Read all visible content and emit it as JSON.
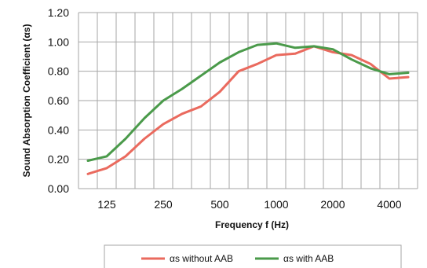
{
  "chart_data": {
    "type": "line",
    "title": "",
    "xlabel": "Frequency f (Hz)",
    "ylabel": "Sound Absorption Coefficient (αs)",
    "x": [
      100,
      125,
      160,
      200,
      250,
      315,
      400,
      500,
      630,
      800,
      1000,
      1250,
      1600,
      2000,
      2500,
      3150,
      4000,
      5000
    ],
    "x_tick_labels": [
      "125",
      "250",
      "500",
      "1000",
      "2000",
      "4000"
    ],
    "x_tick_values": [
      125,
      250,
      500,
      1000,
      2000,
      4000
    ],
    "y_tick_labels": [
      "0.00",
      "0.20",
      "0.40",
      "0.60",
      "0.80",
      "1.00",
      "1.20"
    ],
    "ylim": [
      0,
      1.2
    ],
    "y_step": 0.2,
    "x_scale": "log (one-third octave bands)",
    "grid": true,
    "legend_position": "bottom",
    "series": [
      {
        "name": "αs without AAB",
        "color": "#ea6a5e",
        "values": [
          0.1,
          0.14,
          0.22,
          0.34,
          0.44,
          0.51,
          0.56,
          0.66,
          0.8,
          0.85,
          0.91,
          0.92,
          0.97,
          0.93,
          0.91,
          0.85,
          0.75,
          0.76
        ]
      },
      {
        "name": "αs with AAB",
        "color": "#4a9a4a",
        "values": [
          0.19,
          0.22,
          0.34,
          0.48,
          0.6,
          0.68,
          0.77,
          0.86,
          0.93,
          0.98,
          0.99,
          0.96,
          0.97,
          0.95,
          0.88,
          0.82,
          0.78,
          0.79
        ]
      }
    ]
  }
}
